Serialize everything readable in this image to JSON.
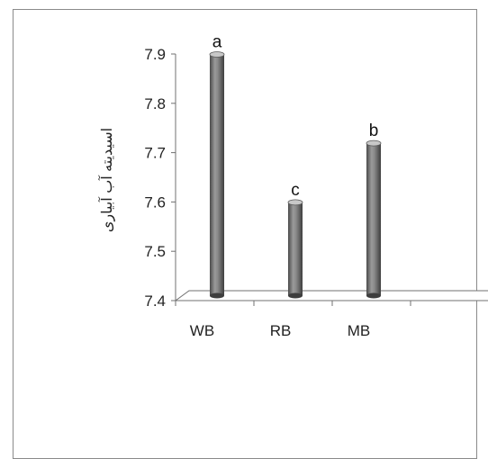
{
  "chart_data": {
    "type": "bar",
    "style": "3d-cylinder",
    "categories": [
      "WB",
      "RB",
      "MB",
      ""
    ],
    "values": [
      7.9,
      7.6,
      7.72,
      null
    ],
    "data_labels": [
      "a",
      "c",
      "b",
      ""
    ],
    "title": "",
    "xlabel": "",
    "ylabel": "اسیدیته آب آبیاری",
    "ylim": [
      7.4,
      7.9
    ],
    "yticks": [
      "7.4",
      "7.5",
      "7.6",
      "7.7",
      "7.8",
      "7.9"
    ],
    "grid": false,
    "legend": "none",
    "colors": {
      "bar": "#7f7f7f",
      "bar_dark": "#4a4a4a",
      "bar_light": "#c8c8c8",
      "axis": "#707070"
    }
  }
}
